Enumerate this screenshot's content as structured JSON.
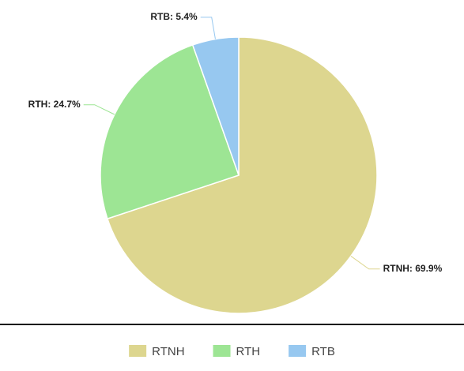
{
  "chart_data": {
    "type": "pie",
    "categories": [
      "RTNH",
      "RTH",
      "RTB"
    ],
    "values": [
      69.9,
      24.7,
      5.4
    ],
    "value_labels": [
      "RTNH: 69.9%",
      "RTH: 24.7%",
      "RTB: 5.4%"
    ],
    "colors": [
      "#ddd68f",
      "#9de594",
      "#97c8f0"
    ],
    "legend": "bottom"
  }
}
